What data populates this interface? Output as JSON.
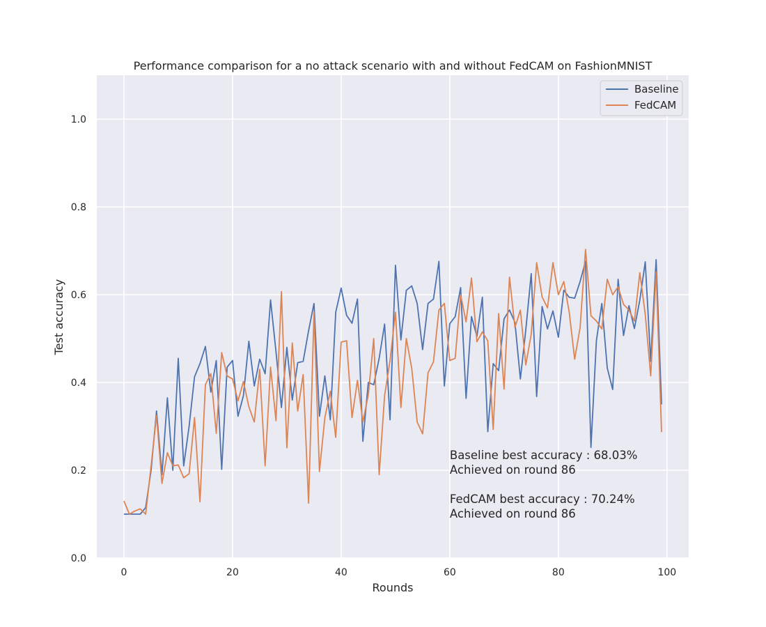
{
  "chart_data": {
    "type": "line",
    "title": "Performance comparison for a no attack scenario with and without FedCAM on FashionMNIST",
    "xlabel": "Rounds",
    "ylabel": "Test accuracy",
    "xlim": [
      -5,
      104
    ],
    "ylim": [
      0.0,
      1.1
    ],
    "xticks": [
      0,
      20,
      40,
      60,
      80,
      100
    ],
    "yticks": [
      0.0,
      0.2,
      0.4,
      0.6,
      0.8,
      1.0
    ],
    "xtick_labels": [
      "0",
      "20",
      "40",
      "60",
      "80",
      "100"
    ],
    "ytick_labels": [
      "0.0",
      "0.2",
      "0.4",
      "0.6",
      "0.8",
      "1.0"
    ],
    "grid": true,
    "legend_position": "top-right",
    "x": [
      0,
      1,
      2,
      3,
      4,
      5,
      6,
      7,
      8,
      9,
      10,
      11,
      12,
      13,
      14,
      15,
      16,
      17,
      18,
      19,
      20,
      21,
      22,
      23,
      24,
      25,
      26,
      27,
      28,
      29,
      30,
      31,
      32,
      33,
      34,
      35,
      36,
      37,
      38,
      39,
      40,
      41,
      42,
      43,
      44,
      45,
      46,
      47,
      48,
      49,
      50,
      51,
      52,
      53,
      54,
      55,
      56,
      57,
      58,
      59,
      60,
      61,
      62,
      63,
      64,
      65,
      66,
      67,
      68,
      69,
      70,
      71,
      72,
      73,
      74,
      75,
      76,
      77,
      78,
      79,
      80,
      81,
      82,
      83,
      84,
      85,
      86,
      87,
      88,
      89,
      90,
      91,
      92,
      93,
      94,
      95,
      96,
      97,
      98,
      99
    ],
    "series": [
      {
        "name": "Baseline",
        "color": "#4c72b0",
        "values": [
          0.1,
          0.1,
          0.1,
          0.1,
          0.115,
          0.2,
          0.335,
          0.19,
          0.365,
          0.2,
          0.455,
          0.21,
          0.3,
          0.413,
          0.443,
          0.482,
          0.378,
          0.45,
          0.202,
          0.435,
          0.45,
          0.323,
          0.37,
          0.494,
          0.392,
          0.453,
          0.42,
          0.588,
          0.47,
          0.343,
          0.48,
          0.36,
          0.445,
          0.448,
          0.518,
          0.58,
          0.323,
          0.415,
          0.315,
          0.56,
          0.615,
          0.553,
          0.535,
          0.59,
          0.266,
          0.4,
          0.395,
          0.455,
          0.533,
          0.315,
          0.667,
          0.497,
          0.61,
          0.62,
          0.58,
          0.475,
          0.58,
          0.59,
          0.676,
          0.392,
          0.534,
          0.55,
          0.616,
          0.364,
          0.55,
          0.505,
          0.594,
          0.288,
          0.443,
          0.427,
          0.545,
          0.565,
          0.537,
          0.408,
          0.52,
          0.648,
          0.368,
          0.573,
          0.522,
          0.563,
          0.503,
          0.61,
          0.594,
          0.592,
          0.63,
          0.676,
          0.252,
          0.495,
          0.58,
          0.433,
          0.384,
          0.635,
          0.507,
          0.575,
          0.523,
          0.588,
          0.675,
          0.448,
          0.68,
          0.35
        ]
      },
      {
        "name": "FedCAM",
        "color": "#dd8452",
        "values": [
          0.13,
          0.1,
          0.107,
          0.112,
          0.1,
          0.21,
          0.325,
          0.17,
          0.24,
          0.21,
          0.212,
          0.183,
          0.192,
          0.32,
          0.128,
          0.395,
          0.42,
          0.284,
          0.468,
          0.415,
          0.408,
          0.358,
          0.402,
          0.345,
          0.31,
          0.43,
          0.21,
          0.435,
          0.313,
          0.607,
          0.251,
          0.49,
          0.335,
          0.418,
          0.125,
          0.56,
          0.197,
          0.32,
          0.38,
          0.275,
          0.492,
          0.495,
          0.32,
          0.405,
          0.31,
          0.372,
          0.5,
          0.19,
          0.37,
          0.45,
          0.56,
          0.343,
          0.5,
          0.432,
          0.31,
          0.283,
          0.422,
          0.447,
          0.565,
          0.58,
          0.45,
          0.455,
          0.6,
          0.538,
          0.638,
          0.493,
          0.515,
          0.495,
          0.293,
          0.557,
          0.385,
          0.64,
          0.525,
          0.565,
          0.44,
          0.51,
          0.673,
          0.595,
          0.57,
          0.673,
          0.6,
          0.63,
          0.56,
          0.453,
          0.525,
          0.703,
          0.552,
          0.54,
          0.522,
          0.635,
          0.6,
          0.618,
          0.578,
          0.565,
          0.54,
          0.65,
          0.555,
          0.415,
          0.652,
          0.287
        ]
      }
    ],
    "annotations": [
      "Baseline best accuracy : 68.03%",
      "Achieved on round 86",
      "FedCAM best accuracy : 70.24%",
      "Achieved on round 86"
    ],
    "annotation_anchor": {
      "x": 60,
      "y": 0.2
    }
  }
}
